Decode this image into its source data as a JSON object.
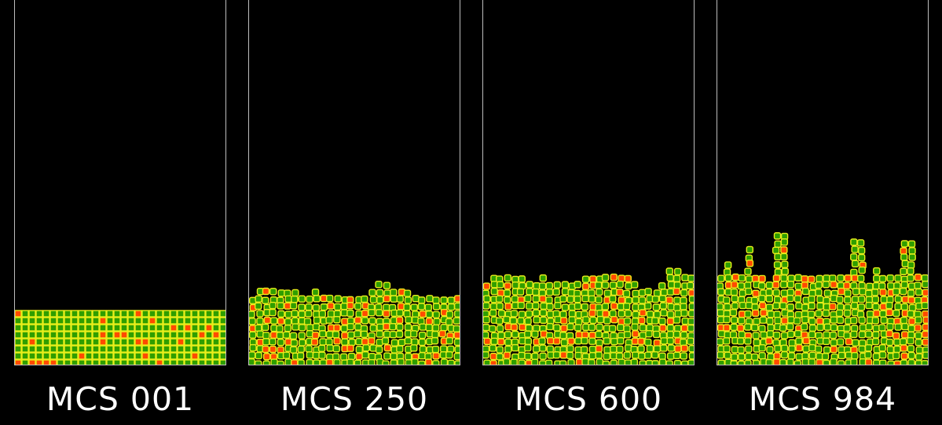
{
  "colors": {
    "background": "#000000",
    "frame_border": "#bdbdbd",
    "cell_green": "#2f9e00",
    "cell_red": "#ff4a00",
    "membrane_yellow": "#e9ee1a"
  },
  "panels": [
    {
      "caption": "MCS 001"
    },
    {
      "caption": "MCS 250"
    },
    {
      "caption": "MCS 600"
    },
    {
      "caption": "MCS 984"
    }
  ]
}
